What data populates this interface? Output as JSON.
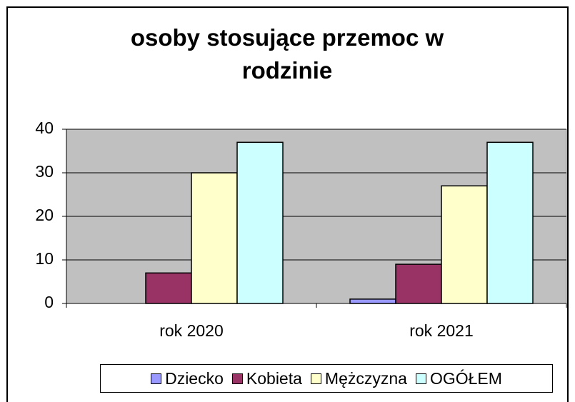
{
  "chart_data": {
    "type": "bar",
    "title": "osoby stosujące przemoc w rodzinie",
    "categories": [
      "rok 2020",
      "rok 2021"
    ],
    "series": [
      {
        "name": "Dziecko",
        "color": "#9999ff",
        "values": [
          0,
          1
        ]
      },
      {
        "name": "Kobieta",
        "color": "#993366",
        "values": [
          7,
          9
        ]
      },
      {
        "name": "Mężczyzna",
        "color": "#ffffcc",
        "values": [
          30,
          27
        ]
      },
      {
        "name": "OGÓŁEM",
        "color": "#ccffff",
        "values": [
          37,
          37
        ]
      }
    ],
    "ylim": [
      0,
      40
    ],
    "yticks": [
      0,
      10,
      20,
      30,
      40
    ],
    "grid": true,
    "legend": "bottom"
  }
}
